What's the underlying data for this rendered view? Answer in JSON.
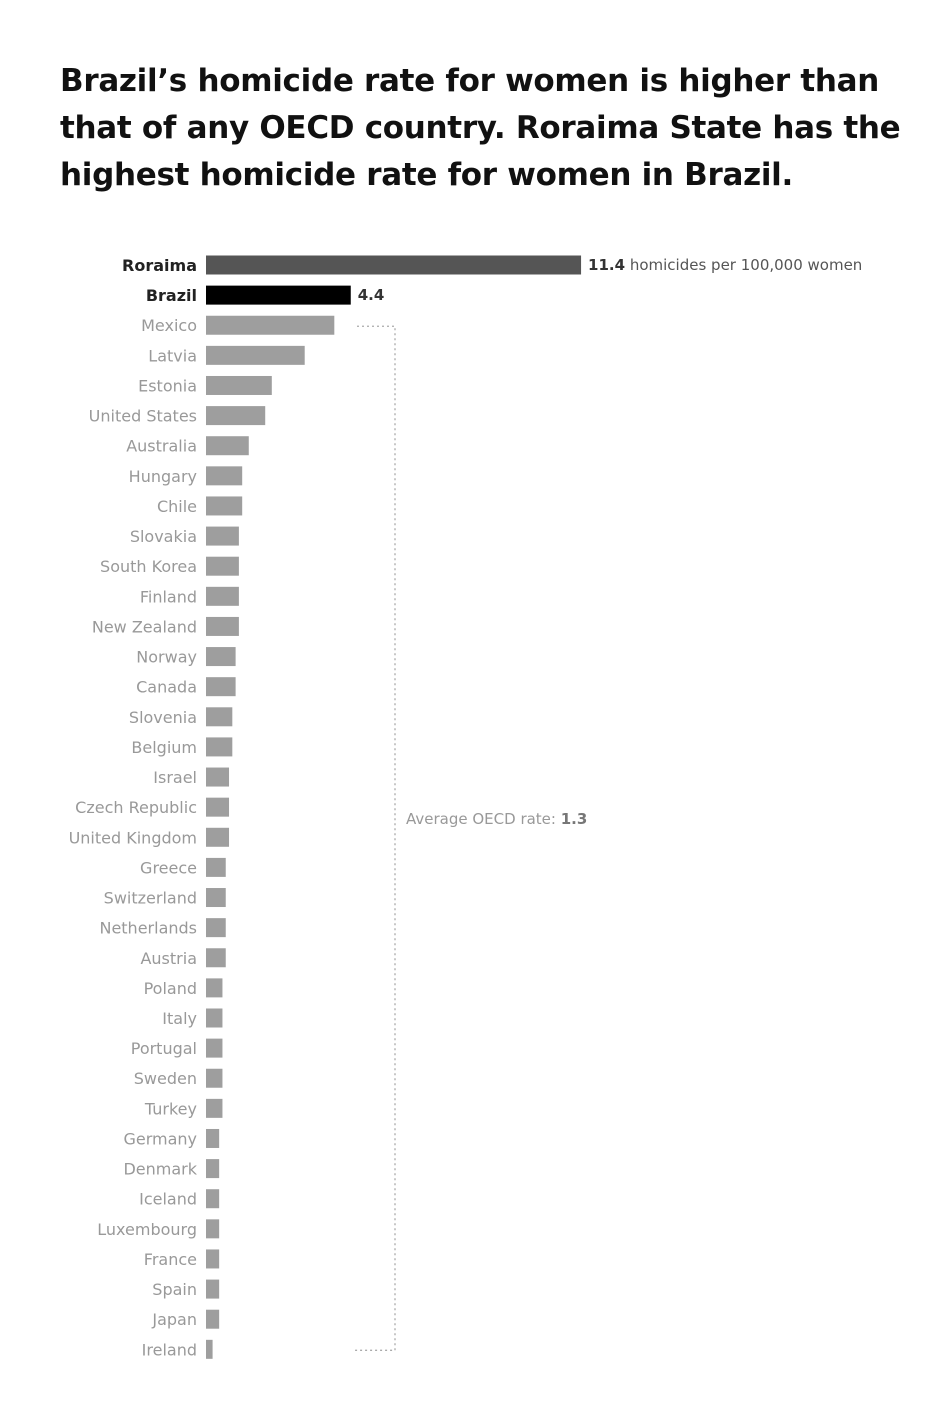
{
  "chart_data": {
    "type": "bar",
    "orientation": "horizontal",
    "title": "Brazil’s homicide rate for women is higher than that of any OECD country. Roraima State has the highest homicide rate for women in Brazil.",
    "unit_label": "homicides per 100,000 women",
    "categories": [
      "Roraima",
      "Brazil",
      "Mexico",
      "Latvia",
      "Estonia",
      "United States",
      "Australia",
      "Hungary",
      "Chile",
      "Slovakia",
      "South Korea",
      "Finland",
      "New Zealand",
      "Norway",
      "Canada",
      "Slovenia",
      "Belgium",
      "Israel",
      "Czech Republic",
      "United Kingdom",
      "Greece",
      "Switzerland",
      "Netherlands",
      "Austria",
      "Poland",
      "Italy",
      "Portugal",
      "Sweden",
      "Turkey",
      "Germany",
      "Denmark",
      "Iceland",
      "Luxembourg",
      "France",
      "Spain",
      "Japan",
      "Ireland"
    ],
    "values": [
      11.4,
      4.4,
      3.9,
      3.0,
      2.0,
      1.8,
      1.3,
      1.1,
      1.1,
      1.0,
      1.0,
      1.0,
      1.0,
      0.9,
      0.9,
      0.8,
      0.8,
      0.7,
      0.7,
      0.7,
      0.6,
      0.6,
      0.6,
      0.6,
      0.5,
      0.5,
      0.5,
      0.5,
      0.5,
      0.4,
      0.4,
      0.4,
      0.4,
      0.4,
      0.4,
      0.4,
      0.2
    ],
    "data_labels": {
      "Roraima": "11.4",
      "Brazil": "4.4"
    },
    "annotation": {
      "text": "Average OECD rate:",
      "value": "1.3"
    },
    "colors": {
      "Roraima": "#555555",
      "Brazil": "#000000",
      "other": "#9e9e9e"
    },
    "grid": false
  }
}
